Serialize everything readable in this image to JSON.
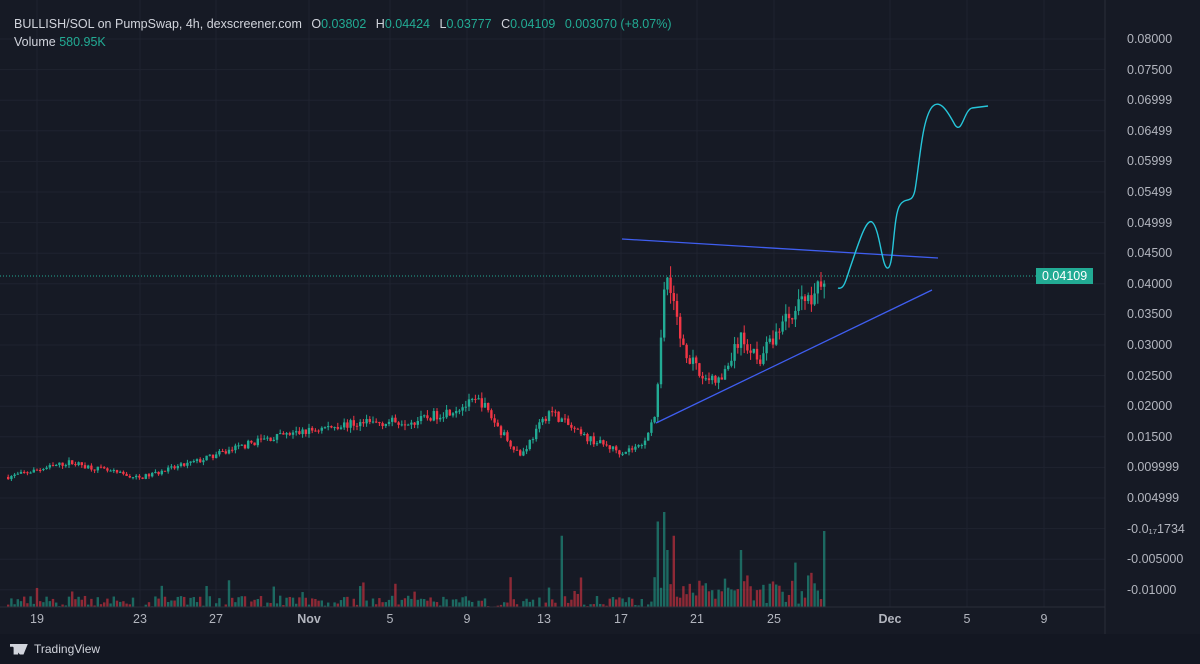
{
  "header": {
    "symbol": "BULLISH/SOL on PumpSwap, 4h, dexscreener.com",
    "o_label": "O",
    "o": "0.03802",
    "h_label": "H",
    "h": "0.04424",
    "l_label": "L",
    "l": "0.03777",
    "c_label": "C",
    "c": "0.04109",
    "change": "0.003070 (+8.07%)",
    "volume_label": "Volume",
    "volume": "580.95K"
  },
  "footer": {
    "brand": "TradingView"
  },
  "colors": {
    "up": "#22ab94",
    "down": "#f23645",
    "trend": "#2962ff",
    "projection": "#26c6da"
  },
  "chart_data": {
    "type": "candlestick",
    "interval": "4h",
    "title": "BULLISH/SOL on PumpSwap, 4h",
    "x_ticks": [
      "19",
      "23",
      "27",
      "Nov",
      "5",
      "9",
      "13",
      "17",
      "21",
      "25",
      "Dec",
      "5",
      "9"
    ],
    "y_ticks": [
      "0.08000",
      "0.07500",
      "0.06999",
      "0.06499",
      "0.05999",
      "0.05499",
      "0.04999",
      "0.04500",
      "0.04000",
      "0.03500",
      "0.03000",
      "0.02500",
      "0.02000",
      "0.01500",
      "0.009999",
      "0.004999",
      "-0.0₁₇1734",
      "-0.005000",
      "-0.01000"
    ],
    "last_price": "0.04109",
    "price_path_days_from_oct19": [
      [
        -1.5,
        0.0085
      ],
      [
        1.7,
        0.0109
      ],
      [
        5.3,
        0.0083
      ],
      [
        8.5,
        0.0112
      ],
      [
        11.6,
        0.0145
      ],
      [
        15.8,
        0.017
      ],
      [
        20,
        0.0178
      ],
      [
        23.1,
        0.021
      ],
      [
        24.1,
        0.0162
      ],
      [
        25.2,
        0.012
      ],
      [
        26.7,
        0.0194
      ],
      [
        28.3,
        0.0153
      ],
      [
        30.4,
        0.0126
      ],
      [
        31.4,
        0.0135
      ],
      [
        32.2,
        0.0178
      ],
      [
        32.6,
        0.0374
      ],
      [
        32.9,
        0.042
      ],
      [
        33.5,
        0.031
      ],
      [
        34.5,
        0.025
      ],
      [
        35.6,
        0.024
      ],
      [
        36.6,
        0.031
      ],
      [
        37.7,
        0.028
      ],
      [
        38.7,
        0.033
      ],
      [
        39.7,
        0.037
      ],
      [
        40.5,
        0.0385
      ],
      [
        41,
        0.0411
      ]
    ],
    "volume_spike_days": [
      [
        32.4,
        0.9
      ],
      [
        32.6,
        1.0
      ],
      [
        32.8,
        0.6
      ],
      [
        33.1,
        0.75
      ],
      [
        27.4,
        0.75
      ],
      [
        36.6,
        0.6
      ],
      [
        41,
        0.8
      ]
    ]
  }
}
